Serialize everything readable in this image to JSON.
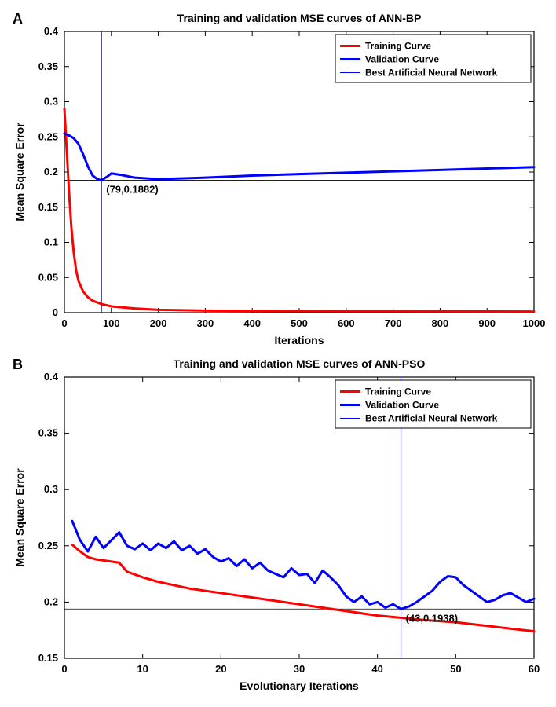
{
  "panelA": {
    "label": "A",
    "type": "line",
    "title": "Training and validation MSE curves of ANN-BP",
    "title_fontsize": 14,
    "xlabel": "Iterations",
    "ylabel": "Mean Square Error",
    "label_fontsize": 14,
    "xlim": [
      0,
      1000
    ],
    "ylim": [
      0,
      0.4
    ],
    "xticks": [
      0,
      100,
      200,
      300,
      400,
      500,
      600,
      700,
      800,
      900,
      1000
    ],
    "yticks": [
      0,
      0.05,
      0.1,
      0.15,
      0.2,
      0.25,
      0.3,
      0.35,
      0.4
    ],
    "background_color": "#ffffff",
    "axis_color": "#000000",
    "tick_color": "#000000",
    "line_width_series": 3,
    "line_width_marker": 1,
    "best_x": 79,
    "best_y": 0.1882,
    "annotation": "(79,0.1882)",
    "legend": {
      "items": [
        {
          "label": "Training Curve",
          "color": "#ff0000",
          "width": 3
        },
        {
          "label": "Validation Curve",
          "color": "#0000ff",
          "width": 3
        },
        {
          "label": "Best Artificial Neural Network",
          "color": "#0000ff",
          "width": 1
        }
      ],
      "border_color": "#000000",
      "position": "top-right"
    },
    "series": {
      "training": {
        "color": "#ff0000",
        "x": [
          0,
          5,
          10,
          15,
          20,
          25,
          30,
          40,
          50,
          60,
          80,
          100,
          150,
          200,
          300,
          400,
          600,
          800,
          1000
        ],
        "y": [
          0.29,
          0.23,
          0.17,
          0.12,
          0.085,
          0.06,
          0.045,
          0.03,
          0.022,
          0.017,
          0.012,
          0.009,
          0.006,
          0.004,
          0.003,
          0.0025,
          0.002,
          0.0018,
          0.0015
        ]
      },
      "validation": {
        "color": "#0000ff",
        "x": [
          0,
          10,
          20,
          30,
          40,
          50,
          60,
          70,
          79,
          90,
          100,
          120,
          150,
          200,
          300,
          400,
          500,
          600,
          700,
          800,
          900,
          1000
        ],
        "y": [
          0.255,
          0.252,
          0.248,
          0.24,
          0.225,
          0.208,
          0.195,
          0.19,
          0.1882,
          0.193,
          0.198,
          0.196,
          0.192,
          0.19,
          0.192,
          0.195,
          0.197,
          0.199,
          0.201,
          0.203,
          0.205,
          0.207
        ]
      }
    }
  },
  "panelB": {
    "label": "B",
    "type": "line",
    "title": "Training and validation MSE curves of ANN-PSO",
    "title_fontsize": 14,
    "xlabel": "Evolutionary Iterations",
    "ylabel": "Mean Square Error",
    "label_fontsize": 14,
    "xlim": [
      0,
      60
    ],
    "ylim": [
      0.15,
      0.4
    ],
    "xticks": [
      0,
      10,
      20,
      30,
      40,
      50,
      60
    ],
    "yticks": [
      0.15,
      0.2,
      0.25,
      0.3,
      0.35,
      0.4
    ],
    "background_color": "#ffffff",
    "axis_color": "#000000",
    "line_width_series": 3,
    "line_width_marker": 1,
    "best_x": 43,
    "best_y": 0.1938,
    "annotation": "(43,0.1938)",
    "legend": {
      "items": [
        {
          "label": "Training Curve",
          "color": "#ff0000",
          "width": 3
        },
        {
          "label": "Validation Curve",
          "color": "#0000ff",
          "width": 3
        },
        {
          "label": "Best Artificial Neural Network",
          "color": "#0000ff",
          "width": 1
        }
      ],
      "border_color": "#000000",
      "position": "top-right"
    },
    "series": {
      "training": {
        "color": "#ff0000",
        "x": [
          1,
          2,
          3,
          4,
          5,
          6,
          7,
          8,
          10,
          12,
          14,
          16,
          18,
          20,
          22,
          24,
          26,
          28,
          30,
          32,
          34,
          36,
          38,
          40,
          43,
          46,
          50,
          55,
          60
        ],
        "y": [
          0.251,
          0.245,
          0.24,
          0.238,
          0.237,
          0.236,
          0.235,
          0.227,
          0.222,
          0.218,
          0.215,
          0.212,
          0.21,
          0.208,
          0.206,
          0.204,
          0.202,
          0.2,
          0.198,
          0.196,
          0.194,
          0.192,
          0.19,
          0.188,
          0.186,
          0.184,
          0.182,
          0.178,
          0.174
        ]
      },
      "validation": {
        "color": "#0000ff",
        "x": [
          1,
          2,
          3,
          4,
          5,
          6,
          7,
          8,
          9,
          10,
          11,
          12,
          13,
          14,
          15,
          16,
          17,
          18,
          19,
          20,
          21,
          22,
          23,
          24,
          25,
          26,
          27,
          28,
          29,
          30,
          31,
          32,
          33,
          34,
          35,
          36,
          37,
          38,
          39,
          40,
          41,
          42,
          43,
          44,
          45,
          46,
          47,
          48,
          49,
          50,
          51,
          52,
          53,
          54,
          55,
          56,
          57,
          58,
          59,
          60
        ],
        "y": [
          0.272,
          0.255,
          0.245,
          0.258,
          0.248,
          0.255,
          0.262,
          0.25,
          0.247,
          0.252,
          0.246,
          0.252,
          0.248,
          0.254,
          0.246,
          0.25,
          0.243,
          0.247,
          0.24,
          0.236,
          0.239,
          0.232,
          0.238,
          0.23,
          0.235,
          0.228,
          0.225,
          0.222,
          0.23,
          0.224,
          0.225,
          0.217,
          0.228,
          0.222,
          0.215,
          0.205,
          0.2,
          0.205,
          0.198,
          0.2,
          0.195,
          0.198,
          0.1938,
          0.196,
          0.2,
          0.205,
          0.21,
          0.218,
          0.223,
          0.222,
          0.215,
          0.21,
          0.205,
          0.2,
          0.202,
          0.206,
          0.208,
          0.204,
          0.2,
          0.203
        ]
      }
    }
  }
}
